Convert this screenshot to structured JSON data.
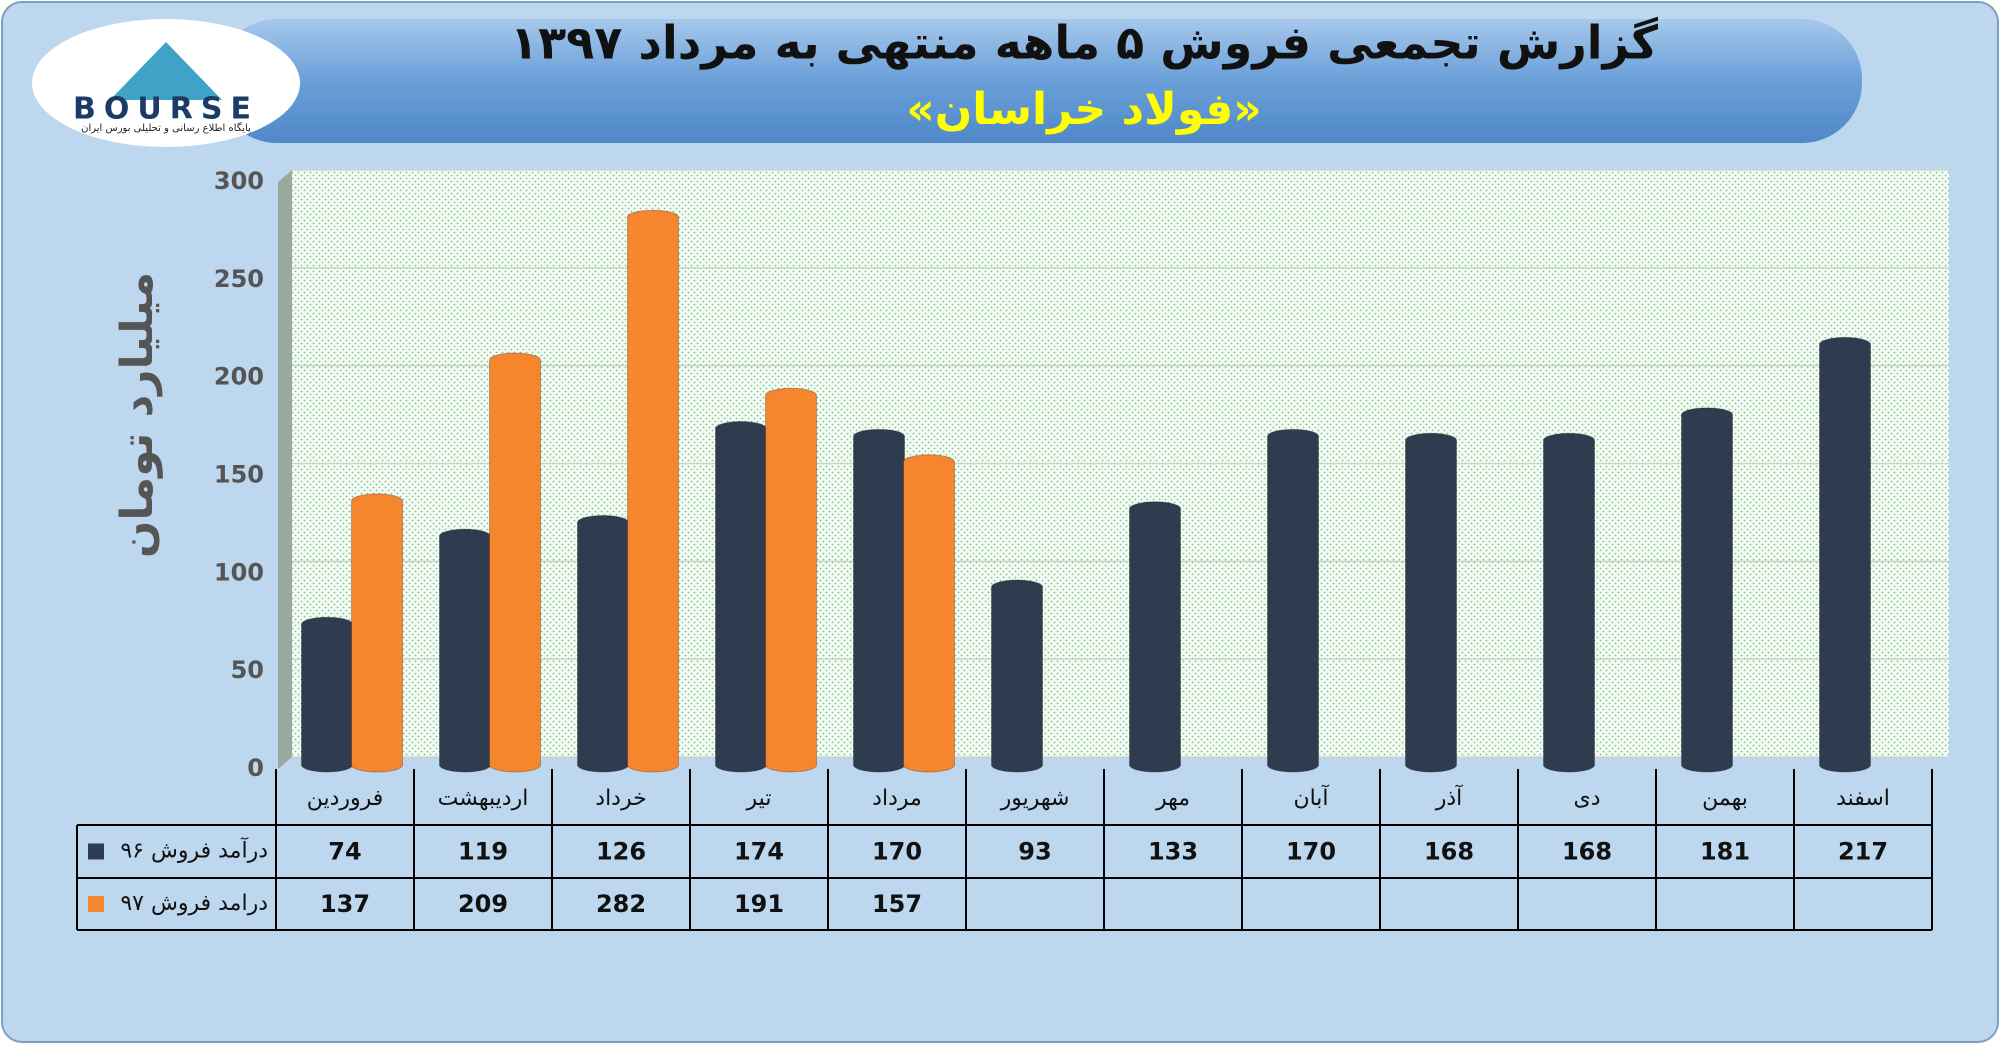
{
  "logo": {
    "name": "BOURSE",
    "tagline": "پایگاه اطلاع رسانی و تحلیلی بورس ایران"
  },
  "chart_data": {
    "type": "bar",
    "title": "گزارش تجمعی فروش ۵ ماهه منتهی به مرداد ۱۳۹۷",
    "subtitle": "«فولاد خراسان»",
    "y_label": "میلیارد تومان",
    "categories": [
      "فروردین",
      "اردیبهشت",
      "خرداد",
      "تیر",
      "مرداد",
      "شهریور",
      "مهر",
      "آبان",
      "آذر",
      "دی",
      "بهمن",
      "اسفند"
    ],
    "series": [
      {
        "name": "درآمد فروش ۹۶",
        "color": "#2f3b4e",
        "values": [
          74,
          119,
          126,
          174,
          170,
          93,
          133,
          170,
          168,
          168,
          181,
          217
        ]
      },
      {
        "name": "درامد فروش ۹۷",
        "color": "#f5862e",
        "values": [
          137,
          209,
          282,
          191,
          157,
          null,
          null,
          null,
          null,
          null,
          null,
          null
        ]
      }
    ],
    "ylim": [
      0,
      300
    ],
    "yticks": [
      0,
      50,
      100,
      150,
      200,
      250,
      300
    ],
    "grid": true
  }
}
